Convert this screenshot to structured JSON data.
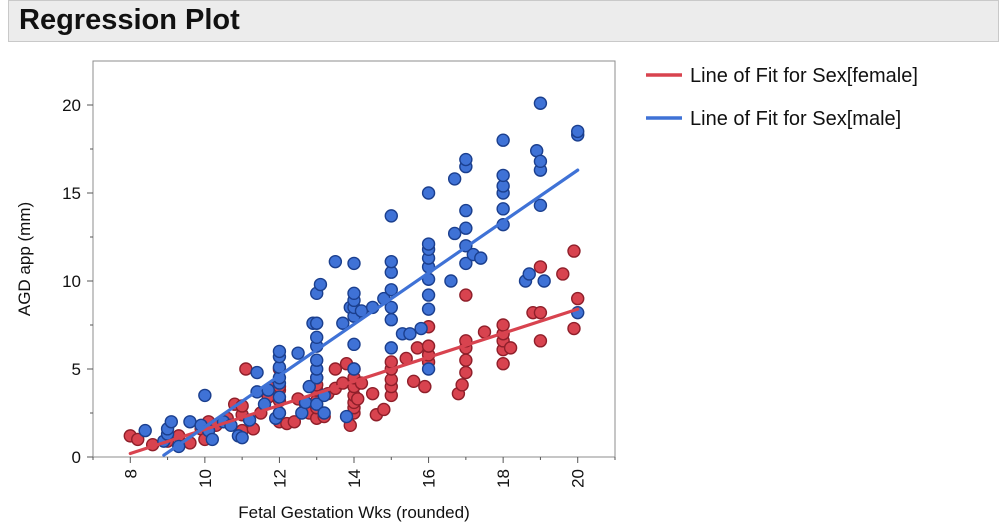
{
  "report": {
    "title": "Regression Plot"
  },
  "chart_data": {
    "type": "scatter",
    "xlabel": "Fetal Gestation Wks (rounded)",
    "ylabel": "AGD app (mm)",
    "xlim": [
      7,
      21
    ],
    "ylim": [
      0,
      22.5
    ],
    "xticks": [
      8,
      10,
      12,
      14,
      16,
      18,
      20
    ],
    "yticks": [
      0,
      5,
      10,
      15,
      20
    ],
    "grid": false,
    "legend_position": "right",
    "colors": {
      "female": "#d8434f",
      "male": "#3f72d6",
      "female_edge": "#8f1f2a",
      "male_edge": "#1b3f8e"
    },
    "series": [
      {
        "name": "Sex[female]",
        "fit_label": "Line of Fit for Sex[female]",
        "fit": {
          "x": [
            8,
            20
          ],
          "y": [
            0.2,
            8.4
          ]
        },
        "points": [
          [
            8,
            1.2
          ],
          [
            8.2,
            1.0
          ],
          [
            8.6,
            0.7
          ],
          [
            9,
            0.9
          ],
          [
            9.3,
            1.2
          ],
          [
            9.6,
            0.8
          ],
          [
            9.9,
            1.6
          ],
          [
            10,
            1.0
          ],
          [
            10.1,
            2.0
          ],
          [
            10.3,
            1.8
          ],
          [
            10.6,
            2.2
          ],
          [
            10.8,
            3.0
          ],
          [
            11,
            2.4
          ],
          [
            11,
            1.5
          ],
          [
            11,
            2.9
          ],
          [
            11.1,
            5.0
          ],
          [
            11.3,
            1.6
          ],
          [
            11.5,
            2.5
          ],
          [
            11.7,
            3.4
          ],
          [
            11.8,
            3.9
          ],
          [
            12,
            2.0
          ],
          [
            12,
            2.5
          ],
          [
            12,
            3.2
          ],
          [
            12,
            3.8
          ],
          [
            12,
            4.0
          ],
          [
            12,
            5.0
          ],
          [
            12.2,
            1.9
          ],
          [
            12.4,
            2.0
          ],
          [
            12.5,
            3.3
          ],
          [
            12.7,
            3.0
          ],
          [
            12.8,
            2.5
          ],
          [
            13,
            2.2
          ],
          [
            13,
            2.8
          ],
          [
            13,
            3.2
          ],
          [
            13,
            3.8
          ],
          [
            13,
            4.1
          ],
          [
            13,
            4.5
          ],
          [
            13.2,
            2.3
          ],
          [
            13.3,
            3.6
          ],
          [
            13.5,
            5.0
          ],
          [
            13.5,
            3.9
          ],
          [
            13.7,
            4.2
          ],
          [
            13.8,
            5.3
          ],
          [
            13.9,
            1.8
          ],
          [
            14,
            2.5
          ],
          [
            14,
            2.8
          ],
          [
            14,
            3.1
          ],
          [
            14,
            3.5
          ],
          [
            14,
            4.0
          ],
          [
            14,
            4.5
          ],
          [
            14,
            5.0
          ],
          [
            14.1,
            3.3
          ],
          [
            14.2,
            4.2
          ],
          [
            14.5,
            3.6
          ],
          [
            14.6,
            2.4
          ],
          [
            14.8,
            2.7
          ],
          [
            15,
            3.5
          ],
          [
            15,
            4.0
          ],
          [
            15,
            4.4
          ],
          [
            15,
            5.0
          ],
          [
            15,
            5.4
          ],
          [
            15.4,
            5.6
          ],
          [
            15.6,
            4.3
          ],
          [
            15.7,
            6.2
          ],
          [
            15.9,
            4.0
          ],
          [
            16,
            5.4
          ],
          [
            16,
            5.8
          ],
          [
            16,
            6.3
          ],
          [
            16,
            7.4
          ],
          [
            16.8,
            3.6
          ],
          [
            16.9,
            4.1
          ],
          [
            17,
            4.8
          ],
          [
            17,
            5.5
          ],
          [
            17,
            6.2
          ],
          [
            17,
            6.6
          ],
          [
            17,
            9.2
          ],
          [
            17.5,
            7.1
          ],
          [
            18,
            5.3
          ],
          [
            18,
            6.1
          ],
          [
            18,
            6.6
          ],
          [
            18,
            7.0
          ],
          [
            18,
            7.5
          ],
          [
            18.2,
            6.2
          ],
          [
            18.8,
            8.2
          ],
          [
            19,
            6.6
          ],
          [
            19,
            8.2
          ],
          [
            19,
            10.8
          ],
          [
            19.6,
            10.4
          ],
          [
            19.9,
            7.3
          ],
          [
            19.9,
            11.7
          ],
          [
            20,
            9.0
          ]
        ]
      },
      {
        "name": "Sex[male]",
        "fit_label": "Line of Fit for Sex[male]",
        "fit": {
          "x": [
            8.9,
            20
          ],
          "y": [
            0.1,
            16.3
          ]
        },
        "points": [
          [
            8.4,
            1.5
          ],
          [
            8.9,
            0.9
          ],
          [
            9,
            1.3
          ],
          [
            9,
            1.6
          ],
          [
            9.1,
            2.0
          ],
          [
            9.3,
            0.6
          ],
          [
            9.6,
            2.0
          ],
          [
            9.9,
            1.8
          ],
          [
            10,
            3.5
          ],
          [
            10.1,
            1.5
          ],
          [
            10.2,
            1.0
          ],
          [
            10.5,
            2.0
          ],
          [
            10.7,
            1.8
          ],
          [
            10.9,
            1.2
          ],
          [
            11,
            1.1
          ],
          [
            11.2,
            2.1
          ],
          [
            11.4,
            3.7
          ],
          [
            11.4,
            4.8
          ],
          [
            11.6,
            3.0
          ],
          [
            11.7,
            3.8
          ],
          [
            11.9,
            2.2
          ],
          [
            12,
            2.5
          ],
          [
            12,
            3.4
          ],
          [
            12,
            4.2
          ],
          [
            12,
            4.5
          ],
          [
            12,
            5.1
          ],
          [
            12,
            5.7
          ],
          [
            12,
            6.0
          ],
          [
            12.5,
            5.9
          ],
          [
            12.6,
            2.5
          ],
          [
            12.7,
            3.1
          ],
          [
            12.8,
            4.0
          ],
          [
            12.9,
            7.6
          ],
          [
            13,
            3.0
          ],
          [
            13,
            4.5
          ],
          [
            13,
            5.0
          ],
          [
            13,
            5.5
          ],
          [
            13,
            6.3
          ],
          [
            13,
            6.8
          ],
          [
            13,
            7.6
          ],
          [
            13,
            9.3
          ],
          [
            13.1,
            9.8
          ],
          [
            13.2,
            2.5
          ],
          [
            13.2,
            3.5
          ],
          [
            13.5,
            11.1
          ],
          [
            13.7,
            7.6
          ],
          [
            13.8,
            2.3
          ],
          [
            13.9,
            8.5
          ],
          [
            14,
            5.0
          ],
          [
            14,
            6.4
          ],
          [
            14,
            8.0
          ],
          [
            14,
            8.5
          ],
          [
            14,
            8.9
          ],
          [
            14,
            9.3
          ],
          [
            14,
            11.0
          ],
          [
            14.2,
            8.3
          ],
          [
            14.5,
            8.5
          ],
          [
            14.8,
            9.0
          ],
          [
            15,
            6.2
          ],
          [
            15,
            7.8
          ],
          [
            15,
            8.5
          ],
          [
            15,
            9.5
          ],
          [
            15,
            10.5
          ],
          [
            15,
            11.1
          ],
          [
            15,
            13.7
          ],
          [
            15.3,
            7.0
          ],
          [
            15.5,
            7.0
          ],
          [
            15.8,
            7.3
          ],
          [
            16,
            5.0
          ],
          [
            16,
            8.4
          ],
          [
            16,
            9.2
          ],
          [
            16,
            10.1
          ],
          [
            16,
            10.8
          ],
          [
            16,
            11.3
          ],
          [
            16,
            11.8
          ],
          [
            16,
            12.1
          ],
          [
            16,
            15.0
          ],
          [
            16.6,
            10.0
          ],
          [
            16.7,
            12.7
          ],
          [
            16.7,
            15.8
          ],
          [
            17,
            11.0
          ],
          [
            17,
            12.0
          ],
          [
            17,
            13.0
          ],
          [
            17,
            14.0
          ],
          [
            17,
            16.5
          ],
          [
            17,
            16.9
          ],
          [
            17.2,
            11.5
          ],
          [
            17.4,
            11.3
          ],
          [
            18,
            13.2
          ],
          [
            18,
            14.1
          ],
          [
            18,
            15.0
          ],
          [
            18,
            15.4
          ],
          [
            18,
            16.0
          ],
          [
            18,
            18.0
          ],
          [
            18.6,
            10.0
          ],
          [
            18.7,
            10.4
          ],
          [
            18.9,
            17.4
          ],
          [
            19,
            14.3
          ],
          [
            19,
            16.3
          ],
          [
            19,
            16.8
          ],
          [
            19,
            20.1
          ],
          [
            19.1,
            10.0
          ],
          [
            20,
            8.2
          ],
          [
            20,
            18.3
          ],
          [
            20,
            18.5
          ]
        ]
      }
    ]
  }
}
